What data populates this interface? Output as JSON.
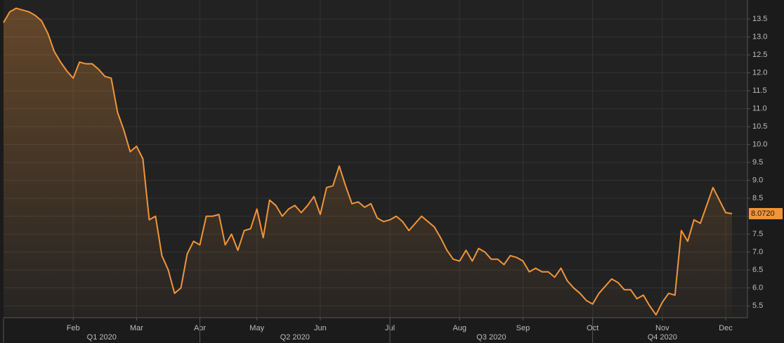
{
  "chart_data": {
    "type": "area",
    "categories": [
      null,
      null,
      null,
      null,
      null,
      null,
      null,
      null,
      null,
      null,
      null,
      "Feb",
      null,
      null,
      null,
      null,
      null,
      null,
      null,
      null,
      null,
      "Mar",
      null,
      null,
      null,
      null,
      null,
      null,
      null,
      null,
      null,
      "Apr",
      null,
      null,
      null,
      null,
      null,
      null,
      null,
      null,
      "May",
      null,
      null,
      null,
      null,
      null,
      null,
      null,
      null,
      null,
      "Jun",
      null,
      null,
      null,
      null,
      null,
      null,
      null,
      null,
      null,
      null,
      "Jul",
      null,
      null,
      null,
      null,
      null,
      null,
      null,
      null,
      null,
      null,
      "Aug",
      null,
      null,
      null,
      null,
      null,
      null,
      null,
      null,
      null,
      "Sep",
      null,
      null,
      null,
      null,
      null,
      null,
      null,
      null,
      null,
      null,
      "Oct",
      null,
      null,
      null,
      null,
      null,
      null,
      null,
      null,
      null,
      null,
      "Nov",
      null,
      null,
      null,
      null,
      null,
      null,
      null,
      null,
      null,
      "Dec",
      null
    ],
    "x_groups": [
      "Q1 2020",
      "Q2 2020",
      "Q3 2020",
      "Q4 2020"
    ],
    "series": [
      {
        "color": "#f0953a",
        "values": [
          13.4,
          13.7,
          13.8,
          13.75,
          13.7,
          13.6,
          13.45,
          13.1,
          12.6,
          12.3,
          12.05,
          11.85,
          12.3,
          12.25,
          12.25,
          12.1,
          11.9,
          11.85,
          10.9,
          10.4,
          9.8,
          9.95,
          9.6,
          7.9,
          8.0,
          6.9,
          6.5,
          5.85,
          6.0,
          6.95,
          7.3,
          7.2,
          8.0,
          8.0,
          8.05,
          7.2,
          7.5,
          7.05,
          7.6,
          7.65,
          8.2,
          7.4,
          8.45,
          8.3,
          8.0,
          8.2,
          8.3,
          8.1,
          8.3,
          8.55,
          8.05,
          8.8,
          8.85,
          9.4,
          8.85,
          8.35,
          8.4,
          8.25,
          8.35,
          7.95,
          7.85,
          7.9,
          8.0,
          7.85,
          7.6,
          7.8,
          8.0,
          7.85,
          7.7,
          7.4,
          7.05,
          6.8,
          6.75,
          7.05,
          6.75,
          7.1,
          7.0,
          6.8,
          6.8,
          6.65,
          6.9,
          6.85,
          6.75,
          6.45,
          6.55,
          6.45,
          6.45,
          6.3,
          6.55,
          6.2,
          6.0,
          5.85,
          5.65,
          5.55,
          5.85,
          6.05,
          6.25,
          6.15,
          5.95,
          5.95,
          5.7,
          5.8,
          5.5,
          5.25,
          5.6,
          5.85,
          5.8,
          7.6,
          7.3,
          7.9,
          7.8,
          8.3,
          8.8,
          8.45,
          8.1,
          8.072
        ],
        "value_labels": [
          null,
          null,
          null,
          null,
          null,
          null,
          null,
          null,
          null,
          null,
          null,
          null,
          null,
          null,
          null,
          null,
          null,
          null,
          null,
          null,
          null,
          null,
          null,
          null,
          null,
          null,
          null,
          null,
          null,
          null,
          null,
          null,
          null,
          null,
          null,
          null,
          null,
          null,
          null,
          null,
          null,
          null,
          null,
          null,
          null,
          null,
          null,
          null,
          null,
          null,
          null,
          null,
          null,
          null,
          null,
          null,
          null,
          null,
          null,
          null,
          null,
          null,
          null,
          null,
          null,
          null,
          null,
          null,
          null,
          null,
          null,
          null,
          null,
          null,
          null,
          null,
          null,
          null,
          null,
          null,
          null,
          null,
          null,
          null,
          null,
          null,
          null,
          null,
          null,
          null,
          null,
          null,
          null,
          null,
          null,
          null,
          null,
          null,
          null,
          null,
          null,
          null,
          null,
          null,
          null,
          null,
          null,
          null,
          null,
          null,
          null,
          null,
          null,
          null,
          null,
          "8.0720"
        ]
      }
    ],
    "ylim": [
      5.17,
      14.03
    ],
    "yticks": [
      5.5,
      {
        "value": 6,
        "label": "6.0"
      },
      6.5,
      {
        "value": 7,
        "label": "7.0"
      },
      7.5,
      {
        "value": 8,
        "label": "8.0"
      },
      8.5,
      {
        "value": 9,
        "label": "9.0"
      },
      9.5,
      {
        "value": 10,
        "label": "10.0"
      },
      10.5,
      {
        "value": 11,
        "label": "11.0"
      },
      11.5,
      {
        "value": 12,
        "label": "12.0"
      },
      12.5,
      {
        "value": 13,
        "label": "13.0"
      },
      13.5
    ],
    "grid": true
  }
}
